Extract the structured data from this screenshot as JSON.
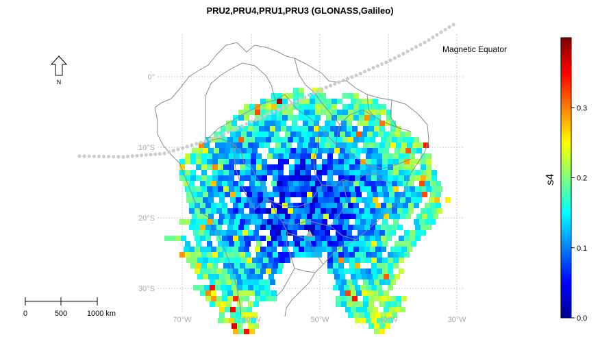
{
  "title": "PRU2,PRU4,PRU1,PRU3 (GLONASS,Galileo)",
  "north_arrow": {
    "label": "N",
    "icon": "north-arrow-icon"
  },
  "scale_bar": {
    "ticks": [
      "0",
      "500",
      "1000 km"
    ]
  },
  "lat_labels": [
    "0°",
    "10°S",
    "20°S",
    "30°S"
  ],
  "lon_labels": [
    "70°W",
    "60°W",
    "50°W",
    "40°W",
    "30°W"
  ],
  "annotation": "Magnetic Equator",
  "colorbar": {
    "label": "s4",
    "min": 0.0,
    "max": 0.4,
    "ticks": [
      "0.0",
      "0.1",
      "0.2",
      "0.3"
    ],
    "colormap": [
      "#00008f",
      "#0000ff",
      "#0080ff",
      "#00ffff",
      "#80ff80",
      "#ffff00",
      "#ff8000",
      "#ff0000",
      "#800000"
    ]
  },
  "colors": {
    "grid": "#c8c8c8",
    "borders": "#8a8a8a",
    "equator_dots": "#cccccc",
    "station_marker": "#b0b0b0"
  }
}
